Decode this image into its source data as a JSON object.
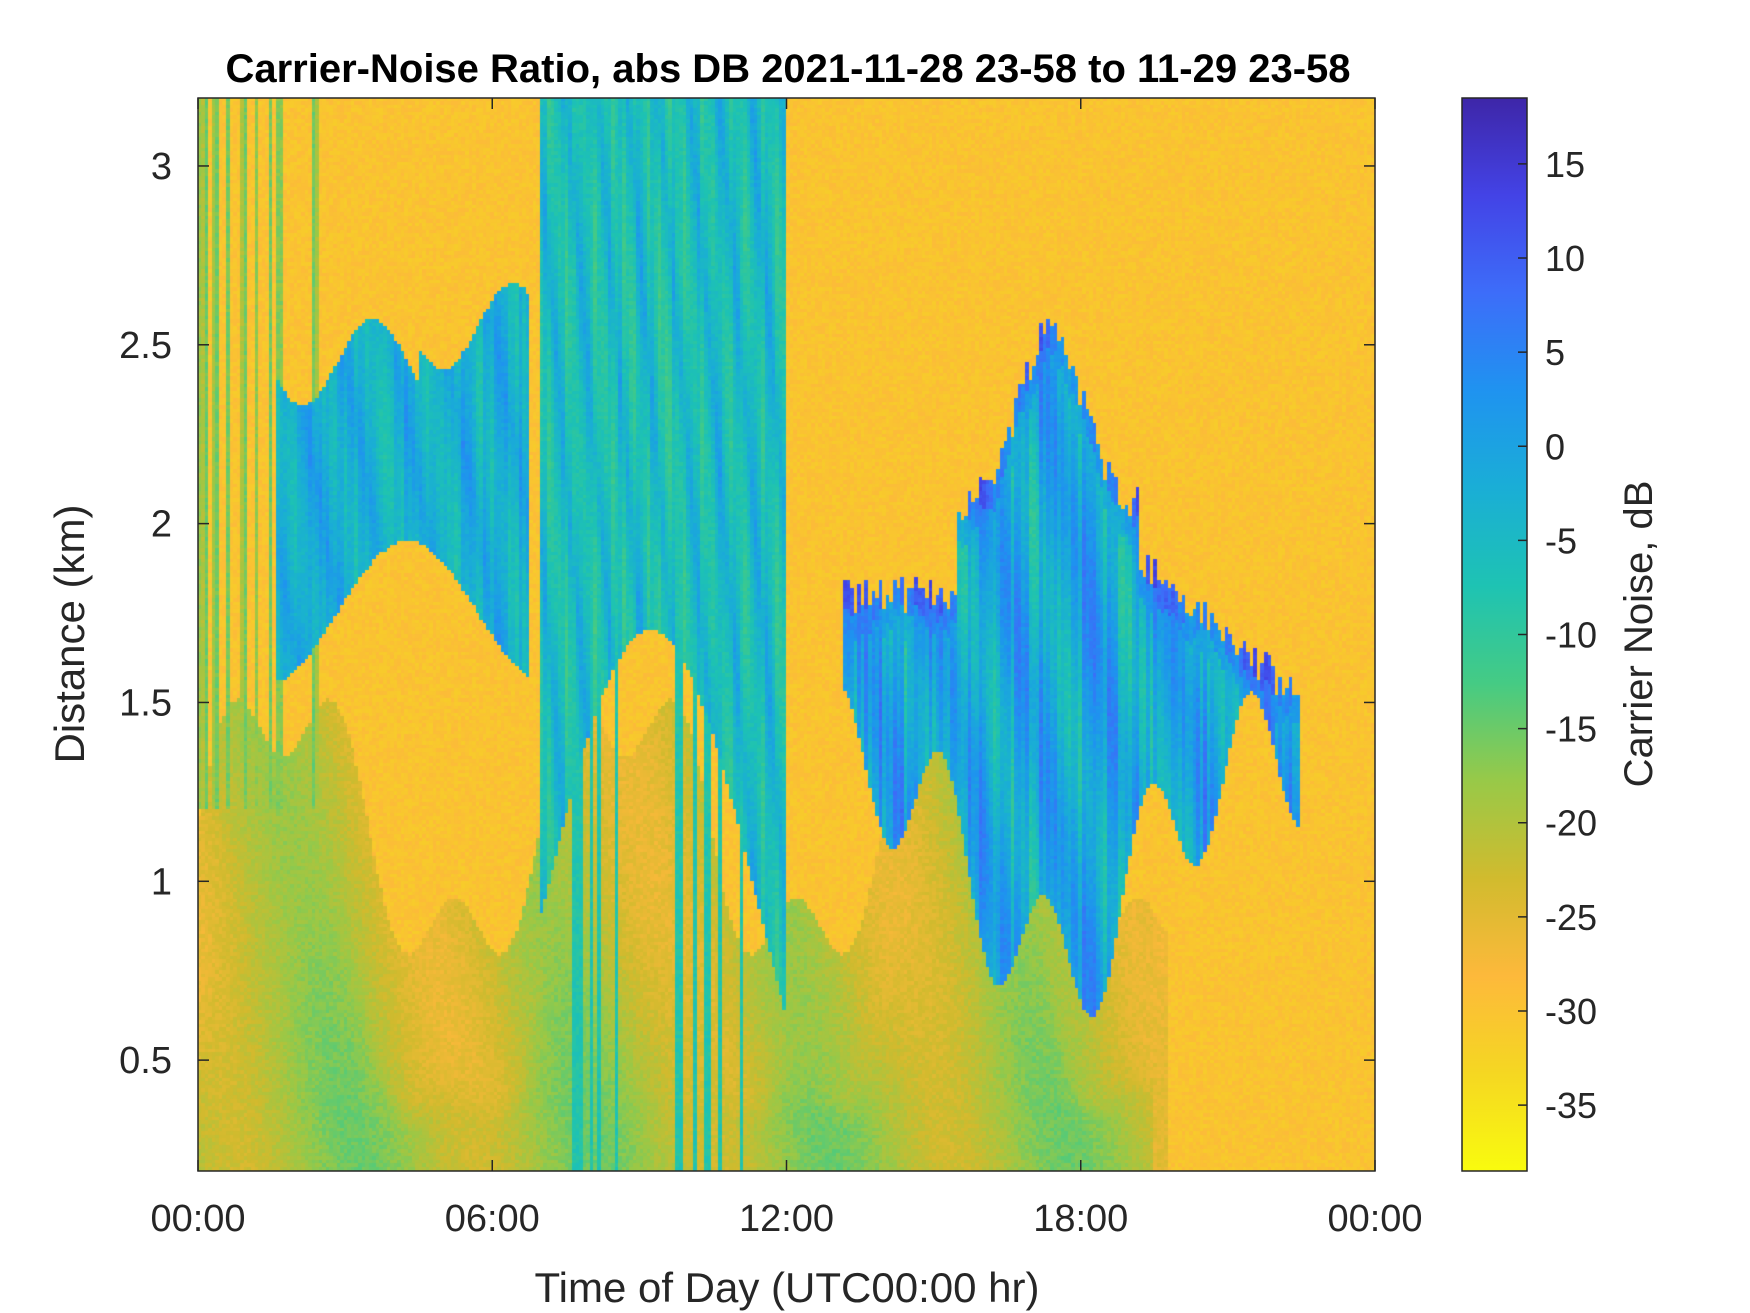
{
  "chart_data": {
    "type": "heatmap",
    "title": "Carrier-Noise Ratio, abs DB 2021-11-28 23-58 to 11-29 23-58",
    "xlabel": "Time of Day (UTC00:00 hr)",
    "ylabel": "Distance (km)",
    "x_units": "hours",
    "xlim": [
      0,
      24
    ],
    "ylim": [
      0.19,
      3.19
    ],
    "x_ticks": [
      {
        "value": 0,
        "label": "00:00"
      },
      {
        "value": 6,
        "label": "06:00"
      },
      {
        "value": 12,
        "label": "12:00"
      },
      {
        "value": 18,
        "label": "18:00"
      },
      {
        "value": 24,
        "label": "00:00"
      }
    ],
    "y_ticks": [
      {
        "value": 0.5,
        "label": "0.5"
      },
      {
        "value": 1,
        "label": "1"
      },
      {
        "value": 1.5,
        "label": "1.5"
      },
      {
        "value": 2,
        "label": "2"
      },
      {
        "value": 2.5,
        "label": "2.5"
      },
      {
        "value": 3,
        "label": "3"
      }
    ],
    "colorbar": {
      "label": "Carrier Noise, dB",
      "clim": [
        -38.5,
        18.5
      ],
      "ticks": [
        15,
        10,
        5,
        0,
        -5,
        -10,
        -15,
        -20,
        -25,
        -30,
        -35
      ],
      "tick_labels": [
        "15",
        "10",
        "5",
        "0",
        "-5",
        "-10",
        "-15",
        "-20",
        "-25",
        "-30",
        "-35"
      ],
      "colormap": [
        "#3e26a8",
        "#4343e6",
        "#3d6df9",
        "#1f93f0",
        "#1aaed6",
        "#1ec3b3",
        "#45cb84",
        "#98c948",
        "#d1bb2e",
        "#fdb93b",
        "#f5d722",
        "#f9fb0e"
      ]
    },
    "features": [
      {
        "description": "Background noise floor",
        "value_dB": -30
      },
      {
        "description": "Near-range return (0.2–1 km), full day",
        "value_dB": -22
      },
      {
        "description": "Elevated layer 1.7–2.6 km, 02:00–06:00",
        "value_dB": 0
      },
      {
        "description": "Strong returns up to 3.2 km, 07:00–12:00",
        "value_dB": -3
      },
      {
        "description": "Cloud cells 1.0–2.5 km, 13:00–23:00",
        "value_dB": 5
      }
    ]
  }
}
